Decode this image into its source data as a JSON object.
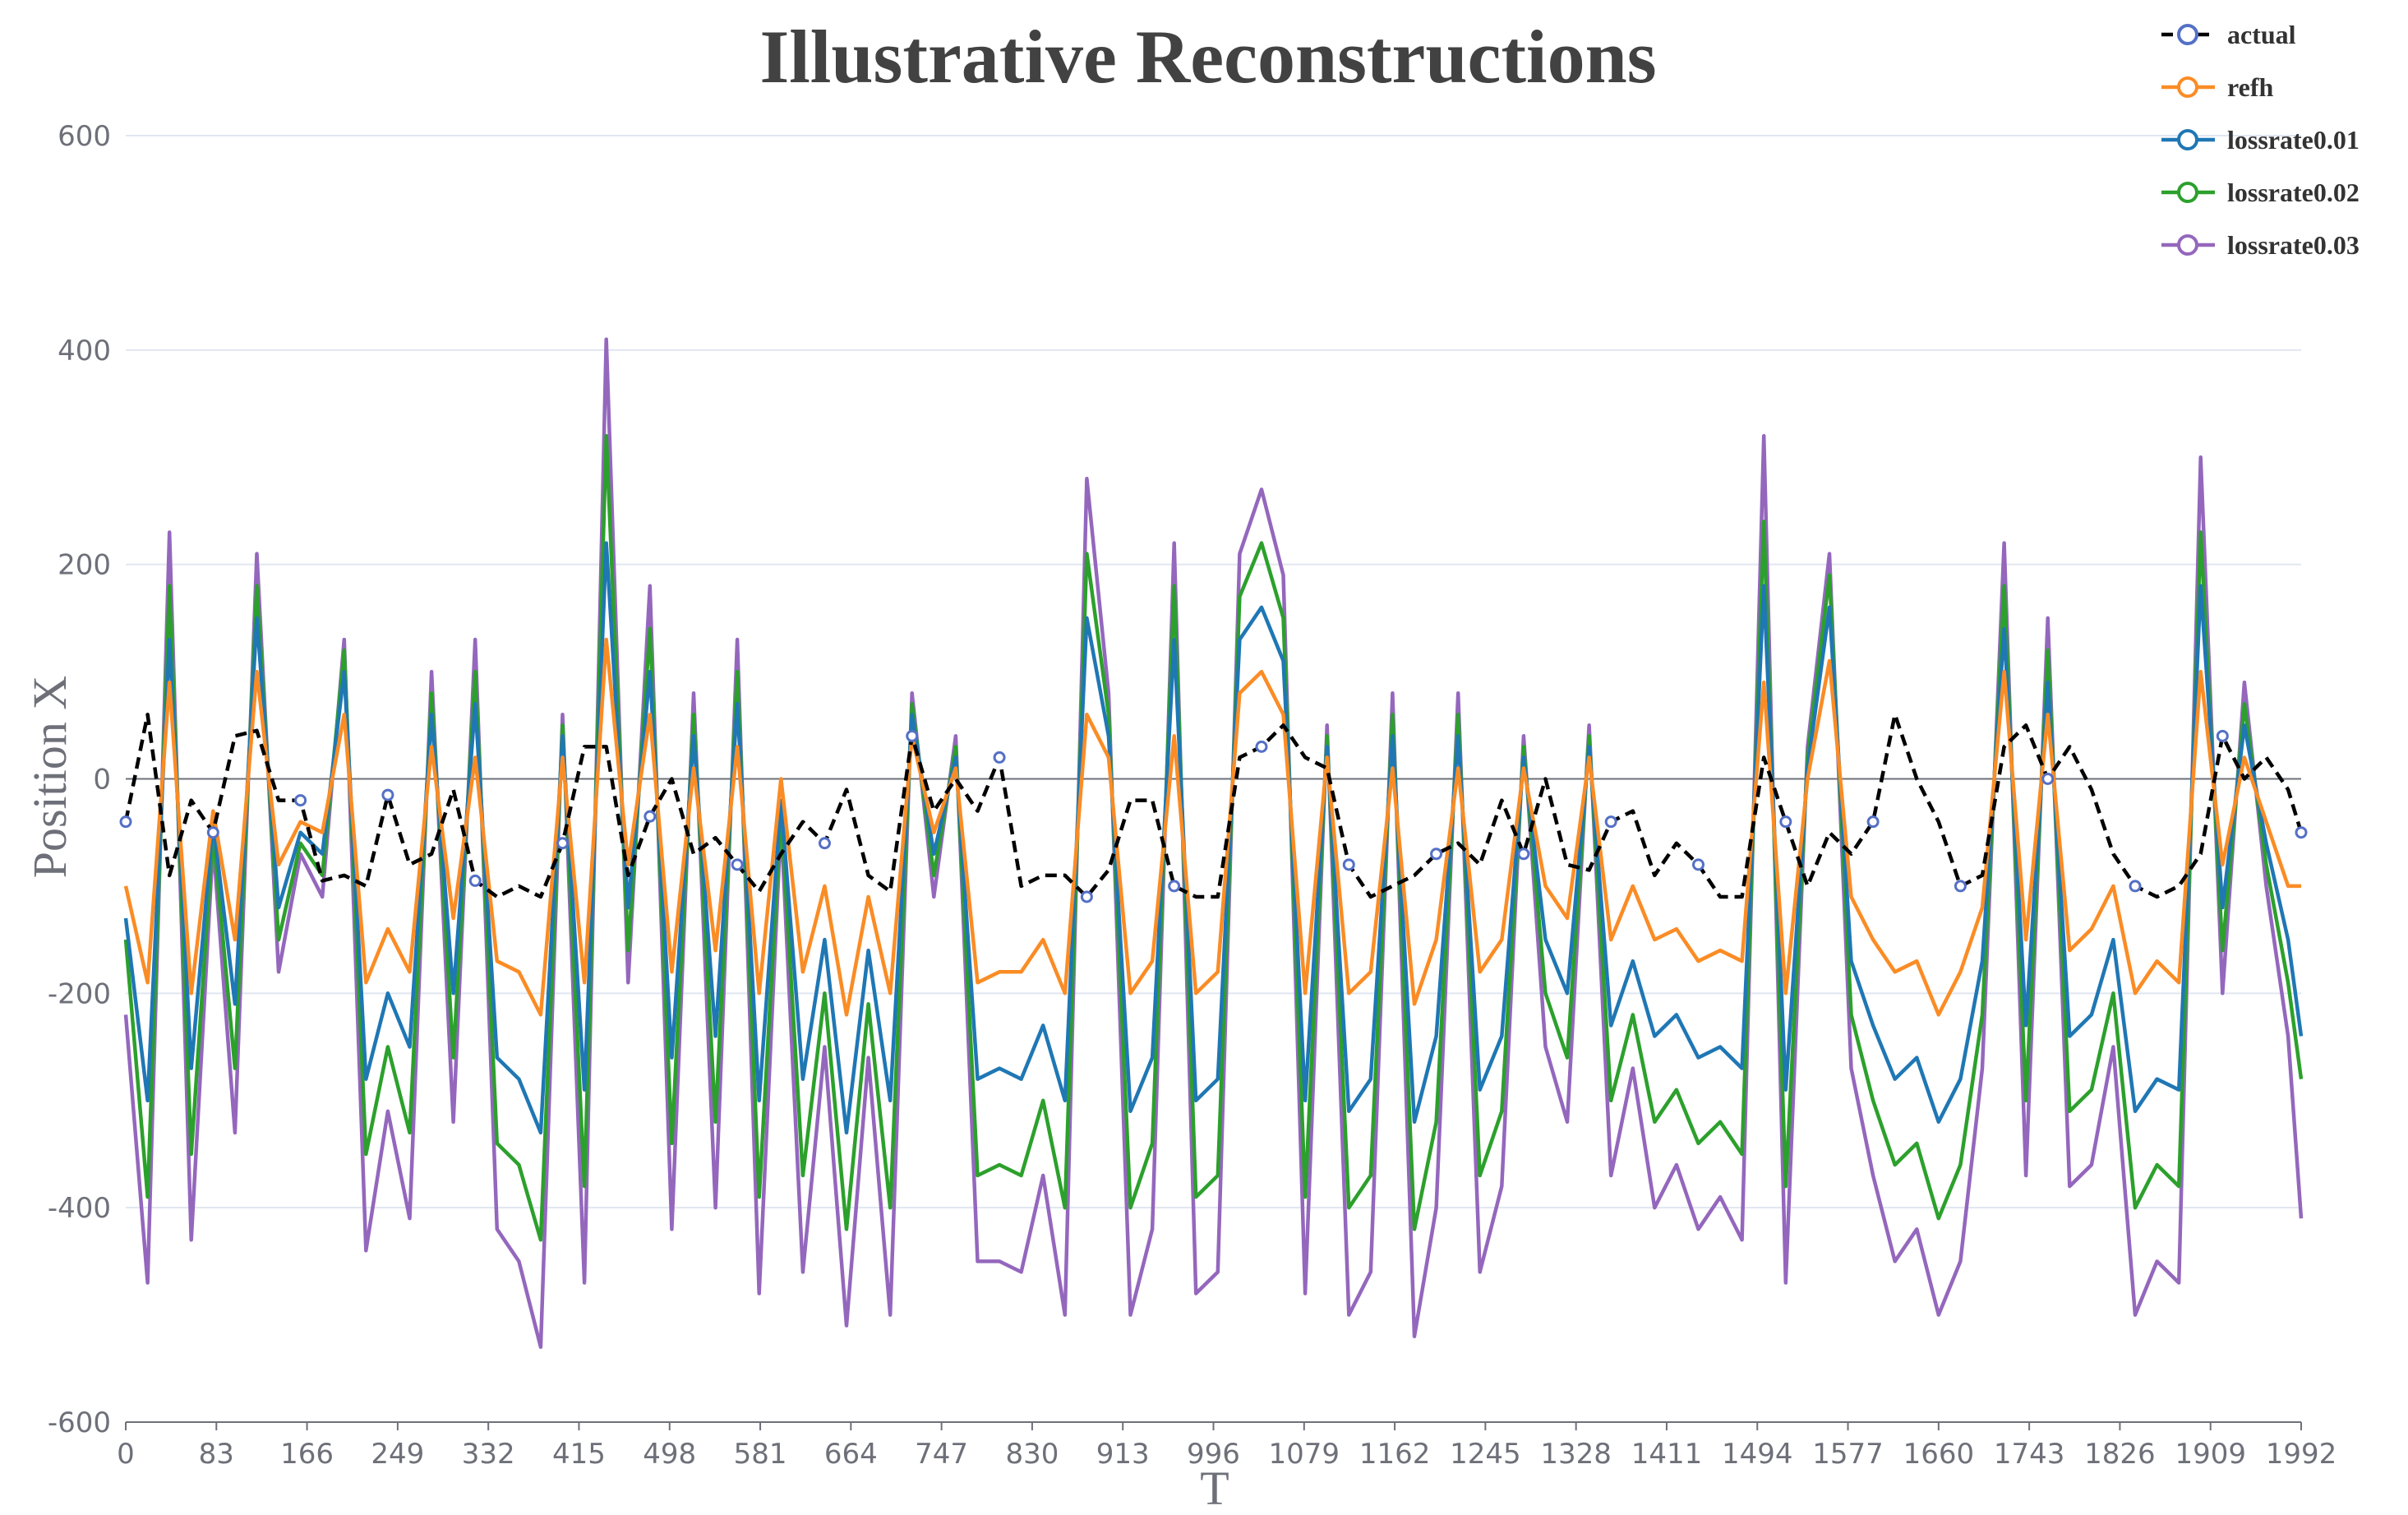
{
  "chart_data": {
    "type": "line",
    "title": "Illustrative Reconstructions",
    "xlabel": "T",
    "ylabel": "Position X",
    "xlim": [
      0,
      1992
    ],
    "ylim": [
      -600,
      600
    ],
    "x_ticks": [
      "0",
      "83",
      "166",
      "249",
      "332",
      "415",
      "498",
      "581",
      "664",
      "747",
      "830",
      "913",
      "996",
      "1079",
      "1162",
      "1245",
      "1328",
      "1411",
      "1494",
      "1577",
      "1660",
      "1743",
      "1826",
      "1909",
      "1992"
    ],
    "y_ticks": [
      "600",
      "400",
      "200",
      "0",
      "-200",
      "-400",
      "-600"
    ],
    "grid": "horizontal",
    "legend_position": "top-right",
    "series": [
      {
        "name": "actual",
        "color": "#000000",
        "dashed": true,
        "marker_color": "#5470c6",
        "x": [
          0,
          20,
          40,
          60,
          80,
          100,
          120,
          140,
          160,
          180,
          200,
          220,
          240,
          260,
          280,
          300,
          320,
          340,
          360,
          380,
          400,
          420,
          440,
          460,
          480,
          500,
          520,
          540,
          560,
          580,
          600,
          620,
          640,
          660,
          680,
          700,
          720,
          740,
          760,
          780,
          800,
          820,
          840,
          860,
          880,
          900,
          920,
          940,
          960,
          980,
          1000,
          1020,
          1040,
          1060,
          1080,
          1100,
          1120,
          1140,
          1160,
          1180,
          1200,
          1220,
          1240,
          1260,
          1280,
          1300,
          1320,
          1340,
          1360,
          1380,
          1400,
          1420,
          1440,
          1460,
          1480,
          1500,
          1520,
          1540,
          1560,
          1580,
          1600,
          1620,
          1640,
          1660,
          1680,
          1700,
          1720,
          1740,
          1760,
          1780,
          1800,
          1820,
          1840,
          1860,
          1880,
          1900,
          1920,
          1940,
          1960,
          1980,
          1992
        ],
        "values": [
          -40,
          60,
          -90,
          -20,
          -50,
          40,
          45,
          -20,
          -20,
          -95,
          -90,
          -100,
          -15,
          -80,
          -70,
          -10,
          -95,
          -110,
          -100,
          -110,
          -60,
          30,
          30,
          -90,
          -35,
          0,
          -70,
          -55,
          -80,
          -105,
          -70,
          -40,
          -60,
          -10,
          -90,
          -105,
          40,
          -30,
          0,
          -30,
          20,
          -100,
          -90,
          -90,
          -110,
          -85,
          -20,
          -20,
          -100,
          -110,
          -110,
          20,
          30,
          50,
          20,
          10,
          -80,
          -110,
          -100,
          -90,
          -70,
          -60,
          -80,
          -20,
          -70,
          0,
          -80,
          -85,
          -40,
          -30,
          -90,
          -60,
          -80,
          -110,
          -110,
          20,
          -40,
          -100,
          -50,
          -70,
          -40,
          60,
          0,
          -40,
          -100,
          -90,
          30,
          50,
          0,
          30,
          -10,
          -70,
          -100,
          -110,
          -100,
          -70,
          40,
          0,
          20,
          -10,
          -50
        ]
      },
      {
        "name": "refh",
        "color": "#fa8c25",
        "dashed": false,
        "x": [
          0,
          20,
          40,
          60,
          80,
          100,
          120,
          140,
          160,
          180,
          200,
          220,
          240,
          260,
          280,
          300,
          320,
          340,
          360,
          380,
          400,
          420,
          440,
          460,
          480,
          500,
          520,
          540,
          560,
          580,
          600,
          620,
          640,
          660,
          680,
          700,
          720,
          740,
          760,
          780,
          800,
          820,
          840,
          860,
          880,
          900,
          920,
          940,
          960,
          980,
          1000,
          1020,
          1040,
          1060,
          1080,
          1100,
          1120,
          1140,
          1160,
          1180,
          1200,
          1220,
          1240,
          1260,
          1280,
          1300,
          1320,
          1340,
          1360,
          1380,
          1400,
          1420,
          1440,
          1460,
          1480,
          1500,
          1520,
          1540,
          1560,
          1580,
          1600,
          1620,
          1640,
          1660,
          1680,
          1700,
          1720,
          1740,
          1760,
          1780,
          1800,
          1820,
          1840,
          1860,
          1880,
          1900,
          1920,
          1940,
          1960,
          1980,
          1992
        ],
        "values": [
          -100,
          -190,
          90,
          -200,
          -30,
          -150,
          100,
          -80,
          -40,
          -50,
          60,
          -190,
          -140,
          -180,
          30,
          -130,
          20,
          -170,
          -180,
          -220,
          20,
          -190,
          130,
          -80,
          60,
          -180,
          10,
          -160,
          30,
          -200,
          0,
          -180,
          -100,
          -220,
          -110,
          -200,
          40,
          -50,
          10,
          -190,
          -180,
          -180,
          -150,
          -200,
          60,
          20,
          -200,
          -170,
          40,
          -200,
          -180,
          80,
          100,
          60,
          -200,
          20,
          -200,
          -180,
          10,
          -210,
          -150,
          10,
          -180,
          -150,
          10,
          -100,
          -130,
          20,
          -150,
          -100,
          -150,
          -140,
          -170,
          -160,
          -170,
          90,
          -200,
          0,
          110,
          -110,
          -150,
          -180,
          -170,
          -220,
          -180,
          -120,
          100,
          -150,
          60,
          -160,
          -140,
          -100,
          -200,
          -170,
          -190,
          100,
          -80,
          20,
          -40,
          -100,
          -100
        ]
      },
      {
        "name": "lossrate0.01",
        "color": "#1f77b4",
        "dashed": false,
        "x": [
          0,
          20,
          40,
          60,
          80,
          100,
          120,
          140,
          160,
          180,
          200,
          220,
          240,
          260,
          280,
          300,
          320,
          340,
          360,
          380,
          400,
          420,
          440,
          460,
          480,
          500,
          520,
          540,
          560,
          580,
          600,
          620,
          640,
          660,
          680,
          700,
          720,
          740,
          760,
          780,
          800,
          820,
          840,
          860,
          880,
          900,
          920,
          940,
          960,
          980,
          1000,
          1020,
          1040,
          1060,
          1080,
          1100,
          1120,
          1140,
          1160,
          1180,
          1200,
          1220,
          1240,
          1260,
          1280,
          1300,
          1320,
          1340,
          1360,
          1380,
          1400,
          1420,
          1440,
          1460,
          1480,
          1500,
          1520,
          1540,
          1560,
          1580,
          1600,
          1620,
          1640,
          1660,
          1680,
          1700,
          1720,
          1740,
          1760,
          1780,
          1800,
          1820,
          1840,
          1860,
          1880,
          1900,
          1920,
          1940,
          1960,
          1980,
          1992
        ],
        "values": [
          -130,
          -300,
          130,
          -270,
          -40,
          -210,
          150,
          -120,
          -50,
          -70,
          100,
          -280,
          -200,
          -250,
          60,
          -200,
          70,
          -260,
          -280,
          -330,
          40,
          -290,
          220,
          -120,
          100,
          -260,
          40,
          -240,
          70,
          -300,
          -20,
          -280,
          -150,
          -330,
          -160,
          -300,
          60,
          -70,
          20,
          -280,
          -270,
          -280,
          -230,
          -300,
          150,
          40,
          -310,
          -260,
          130,
          -300,
          -280,
          130,
          160,
          110,
          -300,
          30,
          -310,
          -280,
          40,
          -320,
          -240,
          40,
          -290,
          -240,
          20,
          -150,
          -200,
          30,
          -230,
          -170,
          -240,
          -220,
          -260,
          -250,
          -270,
          180,
          -290,
          10,
          160,
          -170,
          -230,
          -280,
          -260,
          -320,
          -280,
          -170,
          140,
          -230,
          90,
          -240,
          -220,
          -150,
          -310,
          -280,
          -290,
          180,
          -120,
          50,
          -60,
          -150,
          -240
        ]
      },
      {
        "name": "lossrate0.02",
        "color": "#2ca02c",
        "dashed": false,
        "x": [
          0,
          20,
          40,
          60,
          80,
          100,
          120,
          140,
          160,
          180,
          200,
          220,
          240,
          260,
          280,
          300,
          320,
          340,
          360,
          380,
          400,
          420,
          440,
          460,
          480,
          500,
          520,
          540,
          560,
          580,
          600,
          620,
          640,
          660,
          680,
          700,
          720,
          740,
          760,
          780,
          800,
          820,
          840,
          860,
          880,
          900,
          920,
          940,
          960,
          980,
          1000,
          1020,
          1040,
          1060,
          1080,
          1100,
          1120,
          1140,
          1160,
          1180,
          1200,
          1220,
          1240,
          1260,
          1280,
          1300,
          1320,
          1340,
          1360,
          1380,
          1400,
          1420,
          1440,
          1460,
          1480,
          1500,
          1520,
          1540,
          1560,
          1580,
          1600,
          1620,
          1640,
          1660,
          1680,
          1700,
          1720,
          1740,
          1760,
          1780,
          1800,
          1820,
          1840,
          1860,
          1880,
          1900,
          1920,
          1940,
          1960,
          1980,
          1992
        ],
        "values": [
          -150,
          -390,
          180,
          -350,
          -50,
          -270,
          180,
          -150,
          -60,
          -90,
          120,
          -350,
          -250,
          -330,
          80,
          -260,
          100,
          -340,
          -360,
          -430,
          50,
          -380,
          320,
          -160,
          140,
          -340,
          60,
          -320,
          100,
          -390,
          -30,
          -370,
          -200,
          -420,
          -210,
          -400,
          70,
          -90,
          30,
          -370,
          -360,
          -370,
          -300,
          -400,
          210,
          60,
          -400,
          -340,
          180,
          -390,
          -370,
          170,
          220,
          150,
          -390,
          40,
          -400,
          -370,
          60,
          -420,
          -320,
          60,
          -370,
          -310,
          30,
          -200,
          -260,
          40,
          -300,
          -220,
          -320,
          -290,
          -340,
          -320,
          -350,
          240,
          -380,
          20,
          190,
          -220,
          -300,
          -360,
          -340,
          -410,
          -360,
          -220,
          180,
          -300,
          120,
          -310,
          -290,
          -200,
          -400,
          -360,
          -380,
          230,
          -160,
          70,
          -80,
          -190,
          -280
        ]
      },
      {
        "name": "lossrate0.03",
        "color": "#9467bd",
        "dashed": false,
        "x": [
          0,
          20,
          40,
          60,
          80,
          100,
          120,
          140,
          160,
          180,
          200,
          220,
          240,
          260,
          280,
          300,
          320,
          340,
          360,
          380,
          400,
          420,
          440,
          460,
          480,
          500,
          520,
          540,
          560,
          580,
          600,
          620,
          640,
          660,
          680,
          700,
          720,
          740,
          760,
          780,
          800,
          820,
          840,
          860,
          880,
          900,
          920,
          940,
          960,
          980,
          1000,
          1020,
          1040,
          1060,
          1080,
          1100,
          1120,
          1140,
          1160,
          1180,
          1200,
          1220,
          1240,
          1260,
          1280,
          1300,
          1320,
          1340,
          1360,
          1380,
          1400,
          1420,
          1440,
          1460,
          1480,
          1500,
          1520,
          1540,
          1560,
          1580,
          1600,
          1620,
          1640,
          1660,
          1680,
          1700,
          1720,
          1740,
          1760,
          1780,
          1800,
          1820,
          1840,
          1860,
          1880,
          1900,
          1920,
          1940,
          1960,
          1980,
          1992
        ],
        "values": [
          -220,
          -470,
          230,
          -430,
          -60,
          -330,
          210,
          -180,
          -70,
          -110,
          130,
          -440,
          -310,
          -410,
          100,
          -320,
          130,
          -420,
          -450,
          -530,
          60,
          -470,
          410,
          -190,
          180,
          -420,
          80,
          -400,
          130,
          -480,
          -40,
          -460,
          -250,
          -510,
          -260,
          -500,
          80,
          -110,
          40,
          -450,
          -450,
          -460,
          -370,
          -500,
          280,
          80,
          -500,
          -420,
          220,
          -480,
          -460,
          210,
          270,
          190,
          -480,
          50,
          -500,
          -460,
          80,
          -520,
          -400,
          80,
          -460,
          -380,
          40,
          -250,
          -320,
          50,
          -370,
          -270,
          -400,
          -360,
          -420,
          -390,
          -430,
          320,
          -470,
          30,
          210,
          -270,
          -370,
          -450,
          -420,
          -500,
          -450,
          -270,
          220,
          -370,
          150,
          -380,
          -360,
          -250,
          -500,
          -450,
          -470,
          300,
          -200,
          90,
          -100,
          -240,
          -410
        ]
      }
    ]
  }
}
